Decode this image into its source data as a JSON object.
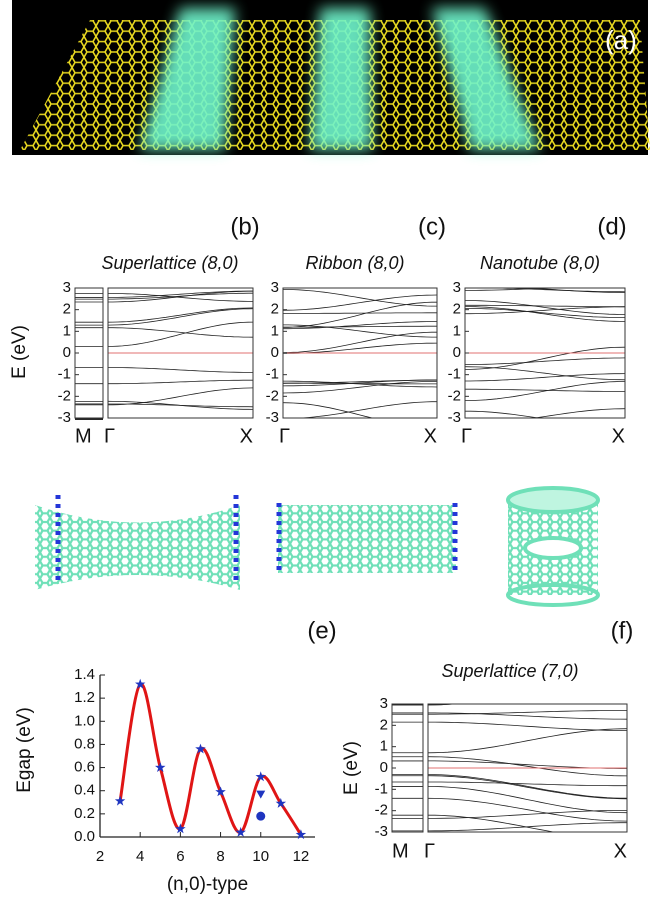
{
  "panel_a": {
    "label": "(a)"
  },
  "chart_data": [
    {
      "type": "band",
      "panel_label": "(b)",
      "title": "Superlattice (8,0)",
      "ylabel": "E (eV)",
      "categories": [
        "M",
        "Γ",
        "X"
      ],
      "ylim": [
        -3,
        3
      ],
      "yticks": [
        -3,
        -2,
        -1,
        0,
        1,
        2,
        3
      ],
      "fermi_level": 0,
      "fermi_color": "#e07070",
      "line_color": "#222222"
    },
    {
      "type": "band",
      "panel_label": "(c)",
      "title": "Ribbon (8,0)",
      "categories": [
        "Γ",
        "X"
      ],
      "ylim": [
        -3,
        3
      ],
      "yticks": [
        -3,
        -2,
        -1,
        0,
        1,
        2,
        3
      ],
      "fermi_level": 0,
      "fermi_color": "#e07070",
      "line_color": "#222222"
    },
    {
      "type": "band",
      "panel_label": "(d)",
      "title": "Nanotube (8,0)",
      "categories": [
        "Γ",
        "X"
      ],
      "ylim": [
        -3,
        3
      ],
      "yticks": [
        -3,
        -2,
        -1,
        0,
        1,
        2,
        3
      ],
      "fermi_level": 0,
      "fermi_color": "#e07070",
      "line_color": "#222222"
    },
    {
      "type": "scatter",
      "panel_label": "(e)",
      "xlabel": "(n,0)-type",
      "ylabel": "Egap (eV)",
      "xlim": [
        2,
        12.7
      ],
      "xticks": [
        2,
        4,
        6,
        8,
        10,
        12
      ],
      "ylim": [
        0,
        1.4
      ],
      "yticks": [
        {
          "value": 0,
          "label": "0.0"
        },
        0.2,
        0.4,
        0.6,
        0.8,
        {
          "value": 1,
          "label": "1.0"
        },
        1.2,
        1.4
      ],
      "series": [
        {
          "marker": "star",
          "color": "#1f35c0",
          "line_color": "#e01515",
          "x": [
            3,
            4,
            5,
            6,
            7,
            8,
            9,
            10,
            11,
            12
          ],
          "values": [
            0.31,
            1.32,
            0.6,
            0.07,
            0.76,
            0.39,
            0.04,
            0.52,
            0.29,
            0.02
          ]
        },
        {
          "marker": "triangle",
          "color": "#1f35c0",
          "x": [
            10
          ],
          "values": [
            0.37
          ]
        },
        {
          "marker": "circle",
          "color": "#1f35c0",
          "x": [
            10
          ],
          "values": [
            0.18
          ]
        }
      ]
    },
    {
      "type": "band",
      "panel_label": "(f)",
      "title": "Superlattice (7,0)",
      "ylabel": "E (eV)",
      "categories": [
        "M",
        "Γ",
        "X"
      ],
      "ylim": [
        -3,
        3
      ],
      "yticks": [
        -3,
        -2,
        -1,
        0,
        1,
        2,
        3
      ],
      "fermi_level": 0,
      "fermi_color": "#e07070",
      "line_color": "#222222"
    }
  ]
}
